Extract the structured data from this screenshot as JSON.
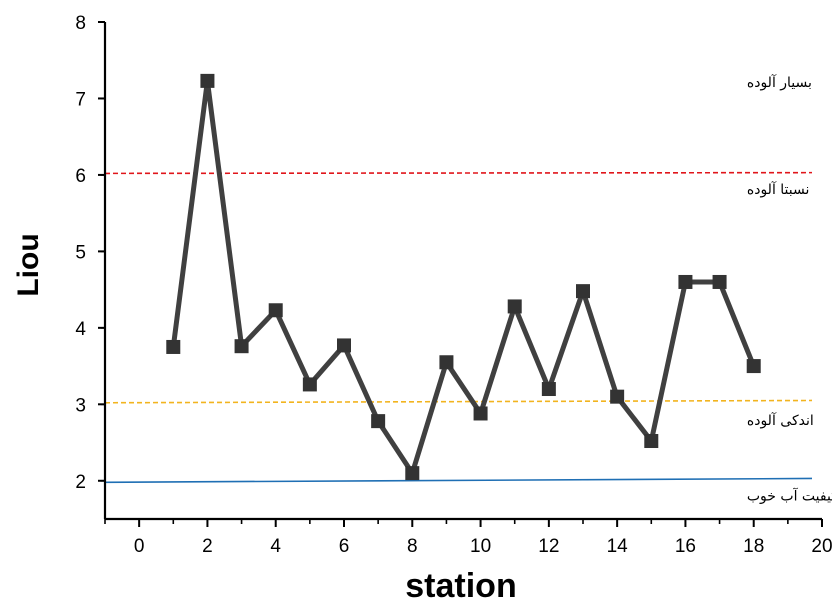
{
  "chart_data": {
    "type": "line",
    "xlabel": "station",
    "ylabel": "Liou",
    "xlim": [
      -1,
      20
    ],
    "ylim": [
      1.5,
      8
    ],
    "xticks": [
      0,
      2,
      4,
      6,
      8,
      10,
      12,
      14,
      16,
      18,
      20
    ],
    "yticks": [
      2,
      3,
      4,
      5,
      6,
      7,
      8
    ],
    "grid": false,
    "series": [
      {
        "color": "#404040",
        "marker": "square",
        "x": [
          1,
          2,
          3,
          4,
          5,
          6,
          7,
          8,
          9,
          10,
          11,
          12,
          13,
          14,
          15,
          16,
          17,
          18
        ],
        "values": [
          3.75,
          7.23,
          3.76,
          4.23,
          3.26,
          3.77,
          2.78,
          2.1,
          3.55,
          2.88,
          4.28,
          3.2,
          4.48,
          3.1,
          2.52,
          4.6,
          4.6,
          3.5
        ]
      }
    ],
    "reference_lines": [
      {
        "y_start": 6.02,
        "y_end": 6.03,
        "color": "#e0161b",
        "style": "dashed"
      },
      {
        "y_start": 3.02,
        "y_end": 3.05,
        "color": "#f2b41f",
        "style": "dashed"
      },
      {
        "y_start": 1.98,
        "y_end": 2.03,
        "color": "#1f6fb4",
        "style": "solid"
      }
    ],
    "annotations": [
      {
        "text": "بسیار آلوده",
        "x": 17.8,
        "y": 7.15
      },
      {
        "text": "نسبتا آلوده",
        "x": 17.8,
        "y": 5.75
      },
      {
        "text": "اندکی آلوده",
        "x": 17.8,
        "y": 2.73
      },
      {
        "text": "کیفیت آب خوب",
        "x": 17.8,
        "y": 1.74
      }
    ]
  }
}
